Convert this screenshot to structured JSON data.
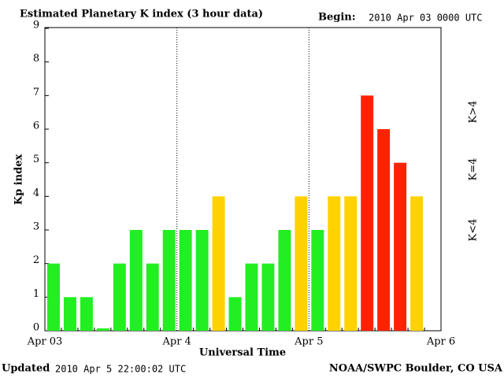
{
  "chart_data": {
    "type": "bar",
    "title": "Estimated Planetary K index (3 hour data)",
    "begin_label": "Begin:",
    "begin_value": "2010 Apr 03 0000 UTC",
    "y_label": "Kp index",
    "x_label": "Universal Time",
    "updated_label": "Updated",
    "updated_value": "2010 Apr  5 22:00:02 UTC",
    "footer": "NOAA/SWPC Boulder, CO USA",
    "x_labels": [
      "Apr 03",
      "Apr 4",
      "Apr 5",
      "Apr 6"
    ],
    "values": [
      2,
      1,
      1,
      0,
      2,
      3,
      2,
      3,
      3,
      3,
      4,
      1,
      2,
      2,
      3,
      4,
      3,
      4,
      4,
      7,
      6,
      5,
      4
    ],
    "colors": [
      "#22ee22",
      "#22ee22",
      "#22ee22",
      "#22ee22",
      "#22ee22",
      "#22ee22",
      "#22ee22",
      "#22ee22",
      "#22ee22",
      "#22ee22",
      "#ffd200",
      "#22ee22",
      "#22ee22",
      "#22ee22",
      "#22ee22",
      "#ffd200",
      "#22ee22",
      "#ffd200",
      "#ffd200",
      "#ff2200",
      "#ff2200",
      "#ff2200",
      "#ffd200"
    ],
    "bars_per_day": 8,
    "legend": [
      {
        "name": "K<4",
        "color": "#22ee22"
      },
      {
        "name": "K=4",
        "color": "#ffd200"
      },
      {
        "name": "K>4",
        "color": "#ff2200"
      }
    ],
    "ylim": [
      0,
      9
    ],
    "yticks": [
      0,
      1,
      2,
      3,
      4,
      5,
      6,
      7,
      8,
      9
    ],
    "grid": true
  }
}
